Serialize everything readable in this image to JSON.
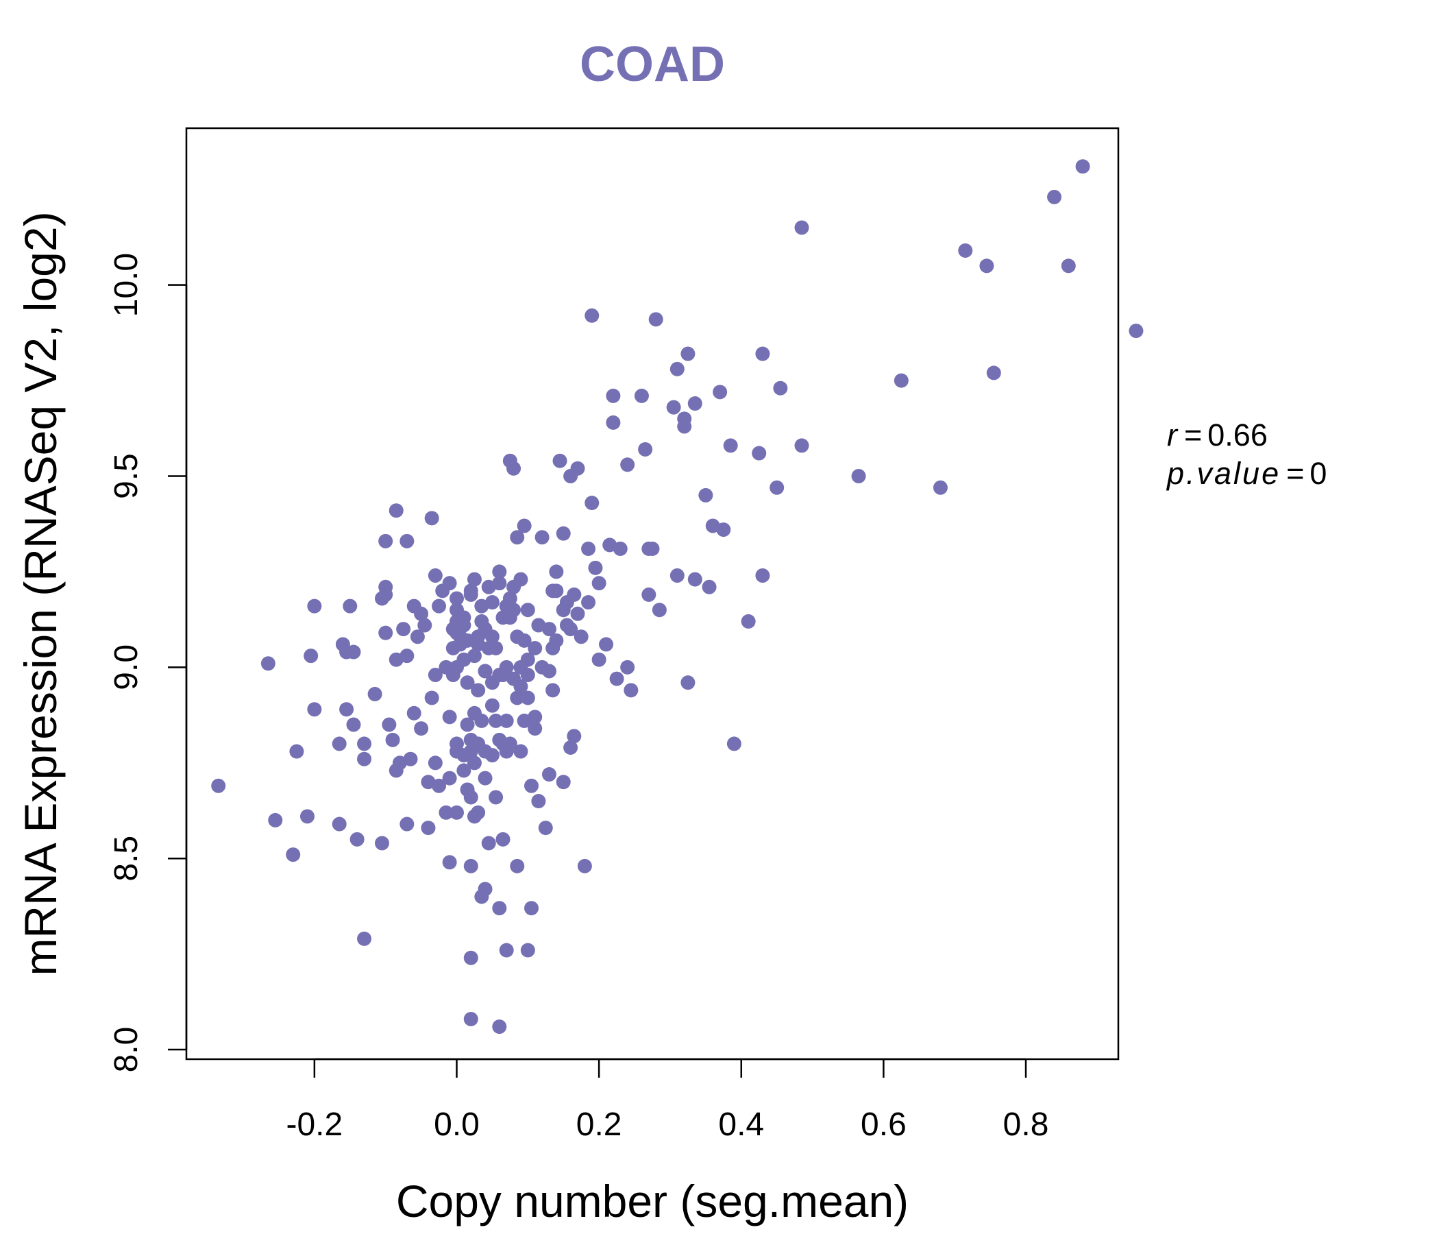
{
  "chart_data": {
    "type": "scatter",
    "title": "COAD",
    "xlabel": "Copy number (seg.mean)",
    "ylabel": "mRNA Expression (RNASeq V2, log2)",
    "xlim": [
      -0.38,
      0.93
    ],
    "ylim": [
      7.975,
      10.41
    ],
    "x_ticks": [
      -0.2,
      0.0,
      0.2,
      0.4,
      0.6,
      0.8
    ],
    "x_tick_labels": [
      "-0.2",
      "0.0",
      "0.2",
      "0.4",
      "0.6",
      "0.8"
    ],
    "y_ticks": [
      8.0,
      8.5,
      9.0,
      9.5,
      10.0
    ],
    "y_tick_labels": [
      "8.0",
      "8.5",
      "9.0",
      "9.5",
      "10.0"
    ],
    "grid": false,
    "point_color": "#7570b3",
    "stats": {
      "r_symbol": "r",
      "r_value": "0.66",
      "p_symbol": "p.value",
      "p_value": "0"
    },
    "points": [
      [
        -0.335,
        8.69
      ],
      [
        -0.265,
        9.01
      ],
      [
        -0.255,
        8.6
      ],
      [
        -0.23,
        8.51
      ],
      [
        -0.225,
        8.78
      ],
      [
        -0.21,
        8.61
      ],
      [
        -0.205,
        9.03
      ],
      [
        -0.2,
        8.89
      ],
      [
        -0.2,
        9.16
      ],
      [
        -0.165,
        8.59
      ],
      [
        -0.165,
        8.8
      ],
      [
        -0.16,
        9.06
      ],
      [
        -0.155,
        8.89
      ],
      [
        -0.155,
        9.04
      ],
      [
        -0.15,
        9.16
      ],
      [
        -0.145,
        9.04
      ],
      [
        -0.145,
        8.85
      ],
      [
        -0.14,
        8.55
      ],
      [
        -0.13,
        8.29
      ],
      [
        -0.13,
        8.76
      ],
      [
        -0.13,
        8.8
      ],
      [
        -0.115,
        8.93
      ],
      [
        -0.105,
        9.18
      ],
      [
        -0.105,
        8.54
      ],
      [
        -0.1,
        9.33
      ],
      [
        -0.1,
        9.21
      ],
      [
        -0.1,
        9.09
      ],
      [
        -0.1,
        9.19
      ],
      [
        -0.095,
        8.85
      ],
      [
        -0.09,
        8.81
      ],
      [
        -0.085,
        9.41
      ],
      [
        -0.085,
        9.02
      ],
      [
        -0.085,
        8.73
      ],
      [
        -0.08,
        8.75
      ],
      [
        -0.075,
        9.1
      ],
      [
        -0.07,
        8.59
      ],
      [
        -0.07,
        9.33
      ],
      [
        -0.07,
        9.03
      ],
      [
        -0.065,
        8.76
      ],
      [
        -0.06,
        9.16
      ],
      [
        -0.06,
        8.88
      ],
      [
        -0.055,
        9.08
      ],
      [
        -0.05,
        9.14
      ],
      [
        -0.05,
        8.84
      ],
      [
        -0.045,
        9.11
      ],
      [
        -0.04,
        8.58
      ],
      [
        -0.04,
        8.7
      ],
      [
        -0.035,
        9.39
      ],
      [
        -0.035,
        8.92
      ],
      [
        -0.03,
        8.98
      ],
      [
        -0.03,
        9.24
      ],
      [
        -0.03,
        8.75
      ],
      [
        -0.025,
        9.16
      ],
      [
        -0.025,
        8.69
      ],
      [
        -0.02,
        9.2
      ],
      [
        -0.015,
        9.0
      ],
      [
        -0.015,
        8.62
      ],
      [
        -0.01,
        8.49
      ],
      [
        -0.01,
        8.87
      ],
      [
        -0.01,
        8.71
      ],
      [
        -0.01,
        9.22
      ],
      [
        -0.005,
        8.98
      ],
      [
        -0.005,
        9.05
      ],
      [
        -0.005,
        9.1
      ],
      [
        0.0,
        8.78
      ],
      [
        0.0,
        8.8
      ],
      [
        0.0,
        9.18
      ],
      [
        0.0,
        9.15
      ],
      [
        0.0,
        9.12
      ],
      [
        0.0,
        9.09
      ],
      [
        0.0,
        8.62
      ],
      [
        0.0,
        9.0
      ],
      [
        0.005,
        9.06
      ],
      [
        0.005,
        9.08
      ],
      [
        0.01,
        8.77
      ],
      [
        0.01,
        8.73
      ],
      [
        0.01,
        9.13
      ],
      [
        0.01,
        9.11
      ],
      [
        0.01,
        9.02
      ],
      [
        0.015,
        8.96
      ],
      [
        0.015,
        9.07
      ],
      [
        0.015,
        8.85
      ],
      [
        0.015,
        8.68
      ],
      [
        0.02,
        9.19
      ],
      [
        0.02,
        9.2
      ],
      [
        0.02,
        8.81
      ],
      [
        0.02,
        8.78
      ],
      [
        0.02,
        8.66
      ],
      [
        0.02,
        8.48
      ],
      [
        0.02,
        8.08
      ],
      [
        0.02,
        8.24
      ],
      [
        0.025,
        8.88
      ],
      [
        0.025,
        9.03
      ],
      [
        0.025,
        9.23
      ],
      [
        0.025,
        8.75
      ],
      [
        0.025,
        8.61
      ],
      [
        0.03,
        9.06
      ],
      [
        0.03,
        8.94
      ],
      [
        0.03,
        9.08
      ],
      [
        0.03,
        8.8
      ],
      [
        0.03,
        8.62
      ],
      [
        0.035,
        9.16
      ],
      [
        0.035,
        9.12
      ],
      [
        0.035,
        8.86
      ],
      [
        0.035,
        8.4
      ],
      [
        0.04,
        8.99
      ],
      [
        0.04,
        8.99
      ],
      [
        0.04,
        9.1
      ],
      [
        0.04,
        8.42
      ],
      [
        0.04,
        8.78
      ],
      [
        0.04,
        8.71
      ],
      [
        0.045,
        9.05
      ],
      [
        0.045,
        9.21
      ],
      [
        0.045,
        8.54
      ],
      [
        0.05,
        8.9
      ],
      [
        0.05,
        8.77
      ],
      [
        0.05,
        9.17
      ],
      [
        0.05,
        9.08
      ],
      [
        0.05,
        8.96
      ],
      [
        0.055,
        8.86
      ],
      [
        0.055,
        9.05
      ],
      [
        0.055,
        8.66
      ],
      [
        0.06,
        9.25
      ],
      [
        0.06,
        9.22
      ],
      [
        0.06,
        8.98
      ],
      [
        0.06,
        8.81
      ],
      [
        0.06,
        8.37
      ],
      [
        0.06,
        8.06
      ],
      [
        0.065,
        8.8
      ],
      [
        0.065,
        9.13
      ],
      [
        0.065,
        8.98
      ],
      [
        0.065,
        8.55
      ],
      [
        0.07,
        9.0
      ],
      [
        0.07,
        8.78
      ],
      [
        0.07,
        9.16
      ],
      [
        0.07,
        8.26
      ],
      [
        0.07,
        8.86
      ],
      [
        0.075,
        9.54
      ],
      [
        0.075,
        9.18
      ],
      [
        0.075,
        9.13
      ],
      [
        0.075,
        8.8
      ],
      [
        0.08,
        9.52
      ],
      [
        0.08,
        9.21
      ],
      [
        0.08,
        9.15
      ],
      [
        0.08,
        8.97
      ],
      [
        0.085,
        9.34
      ],
      [
        0.085,
        9.08
      ],
      [
        0.085,
        8.92
      ],
      [
        0.085,
        8.48
      ],
      [
        0.09,
        9.23
      ],
      [
        0.09,
        8.78
      ],
      [
        0.09,
        9.0
      ],
      [
        0.09,
        8.95
      ],
      [
        0.095,
        9.37
      ],
      [
        0.095,
        9.07
      ],
      [
        0.095,
        8.86
      ],
      [
        0.1,
        9.15
      ],
      [
        0.1,
        8.98
      ],
      [
        0.1,
        9.02
      ],
      [
        0.1,
        8.92
      ],
      [
        0.1,
        8.26
      ],
      [
        0.105,
        8.69
      ],
      [
        0.105,
        8.37
      ],
      [
        0.11,
        9.05
      ],
      [
        0.11,
        8.87
      ],
      [
        0.11,
        8.84
      ],
      [
        0.115,
        9.11
      ],
      [
        0.115,
        8.65
      ],
      [
        0.12,
        9.34
      ],
      [
        0.12,
        9.0
      ],
      [
        0.125,
        8.58
      ],
      [
        0.13,
        8.99
      ],
      [
        0.13,
        8.72
      ],
      [
        0.13,
        9.1
      ],
      [
        0.135,
        9.2
      ],
      [
        0.135,
        8.94
      ],
      [
        0.135,
        9.05
      ],
      [
        0.14,
        9.25
      ],
      [
        0.14,
        9.2
      ],
      [
        0.14,
        9.07
      ],
      [
        0.145,
        9.54
      ],
      [
        0.15,
        8.7
      ],
      [
        0.15,
        9.15
      ],
      [
        0.15,
        9.35
      ],
      [
        0.155,
        9.11
      ],
      [
        0.155,
        9.17
      ],
      [
        0.16,
        9.5
      ],
      [
        0.16,
        9.1
      ],
      [
        0.16,
        8.79
      ],
      [
        0.165,
        9.19
      ],
      [
        0.165,
        8.82
      ],
      [
        0.17,
        9.52
      ],
      [
        0.17,
        9.14
      ],
      [
        0.175,
        9.08
      ],
      [
        0.18,
        8.48
      ],
      [
        0.185,
        9.31
      ],
      [
        0.185,
        9.17
      ],
      [
        0.19,
        9.92
      ],
      [
        0.19,
        9.43
      ],
      [
        0.195,
        9.26
      ],
      [
        0.2,
        9.22
      ],
      [
        0.2,
        9.02
      ],
      [
        0.21,
        9.06
      ],
      [
        0.215,
        9.32
      ],
      [
        0.22,
        9.71
      ],
      [
        0.22,
        9.64
      ],
      [
        0.225,
        8.97
      ],
      [
        0.23,
        9.31
      ],
      [
        0.24,
        9.53
      ],
      [
        0.24,
        9.0
      ],
      [
        0.245,
        8.94
      ],
      [
        0.26,
        9.71
      ],
      [
        0.265,
        9.57
      ],
      [
        0.27,
        9.31
      ],
      [
        0.27,
        9.19
      ],
      [
        0.275,
        9.31
      ],
      [
        0.28,
        9.91
      ],
      [
        0.285,
        9.15
      ],
      [
        0.305,
        9.68
      ],
      [
        0.31,
        9.78
      ],
      [
        0.31,
        9.24
      ],
      [
        0.32,
        9.65
      ],
      [
        0.32,
        9.63
      ],
      [
        0.325,
        9.82
      ],
      [
        0.325,
        8.96
      ],
      [
        0.335,
        9.23
      ],
      [
        0.335,
        9.69
      ],
      [
        0.35,
        9.45
      ],
      [
        0.355,
        9.21
      ],
      [
        0.36,
        9.37
      ],
      [
        0.37,
        9.72
      ],
      [
        0.375,
        9.36
      ],
      [
        0.385,
        9.58
      ],
      [
        0.39,
        8.8
      ],
      [
        0.41,
        9.12
      ],
      [
        0.425,
        9.56
      ],
      [
        0.43,
        9.82
      ],
      [
        0.43,
        9.24
      ],
      [
        0.45,
        9.47
      ],
      [
        0.455,
        9.73
      ],
      [
        0.485,
        10.15
      ],
      [
        0.485,
        9.58
      ],
      [
        0.565,
        9.5
      ],
      [
        0.625,
        9.75
      ],
      [
        0.68,
        9.47
      ],
      [
        0.715,
        10.09
      ],
      [
        0.745,
        10.05
      ],
      [
        0.755,
        9.77
      ],
      [
        0.84,
        10.23
      ],
      [
        0.86,
        10.05
      ],
      [
        0.88,
        10.31
      ],
      [
        0.955,
        9.88
      ]
    ]
  }
}
